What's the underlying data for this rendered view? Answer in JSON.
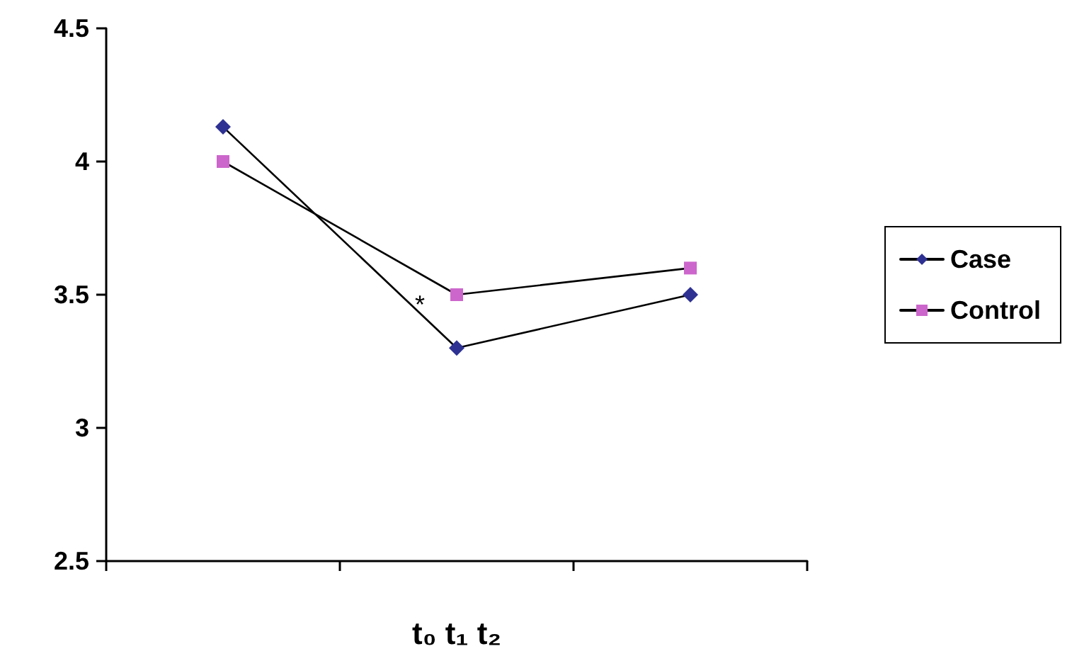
{
  "chart_data": {
    "type": "line",
    "xlabel": "t₀ t₁ t₂",
    "categories": [
      null,
      null,
      null
    ],
    "series": [
      {
        "name": "Case",
        "color": "#2e3192",
        "marker": "diamond",
        "values": [
          4.13,
          3.3,
          3.5
        ]
      },
      {
        "name": "Control",
        "color": "#cc66cc",
        "marker": "square",
        "values": [
          4.0,
          3.5,
          3.6
        ]
      }
    ],
    "ylim": [
      2.5,
      4.5
    ],
    "yticks": [
      2.5,
      3,
      3.5,
      4,
      4.5
    ],
    "grid": false,
    "legend": "right",
    "annotations": [
      "*"
    ]
  }
}
